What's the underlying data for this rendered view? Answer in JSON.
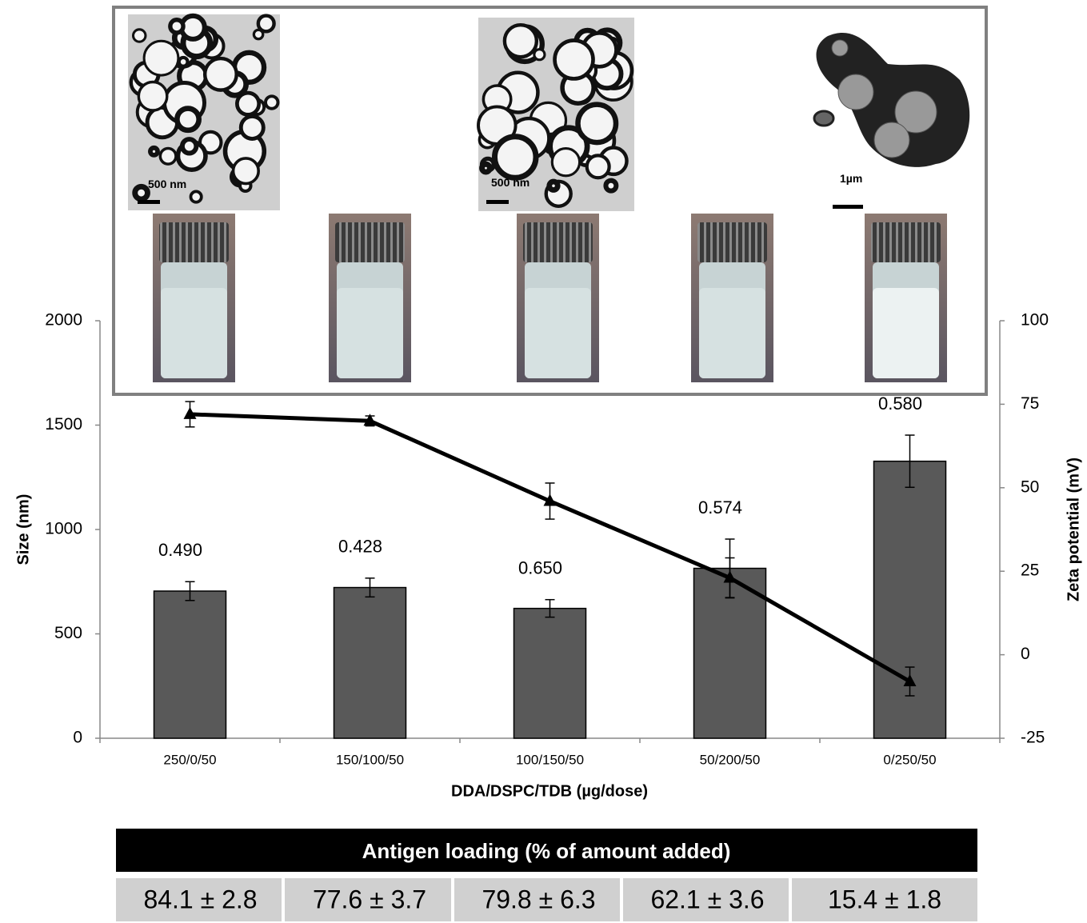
{
  "chart_data": {
    "type": "bar-line",
    "categories": [
      "250/0/50",
      "150/100/50",
      "100/150/50",
      "50/200/50",
      "0/250/50"
    ],
    "x_label": "DDA/DSPC/TDB (µg/dose)",
    "y_label": "Size (nm)",
    "y2_label": "Zeta potential (mV)",
    "ylim": [
      0,
      2000
    ],
    "yticks": [
      0,
      500,
      1000,
      1500,
      2000
    ],
    "y2lim": [
      -25,
      100
    ],
    "y2ticks": [
      -25,
      0,
      25,
      50,
      75,
      100
    ],
    "series": [
      {
        "type": "bar",
        "color": "#595959",
        "values": [
          705,
          722,
          622,
          814,
          1327
        ],
        "errors": [
          45,
          45,
          42,
          140,
          125
        ]
      },
      {
        "type": "line",
        "axis": "y2",
        "color": "#000000",
        "values": [
          72,
          70,
          46,
          23,
          -8
        ],
        "errors": [
          3.8,
          1.5,
          5.4,
          6,
          4.3
        ]
      }
    ],
    "bar_annotations": [
      "0.490",
      "0.428",
      "0.650",
      "0.574",
      "0.580"
    ],
    "inset_scale_labels": [
      "500 nm",
      "500 nm",
      "1µm"
    ]
  },
  "table": {
    "header": "Antigen loading (% of amount added)",
    "cells": [
      "84.1 ± 2.8",
      "77.6 ± 3.7",
      "79.8 ± 6.3",
      "62.1 ± 3.6",
      "15.4 ± 1.8"
    ]
  }
}
